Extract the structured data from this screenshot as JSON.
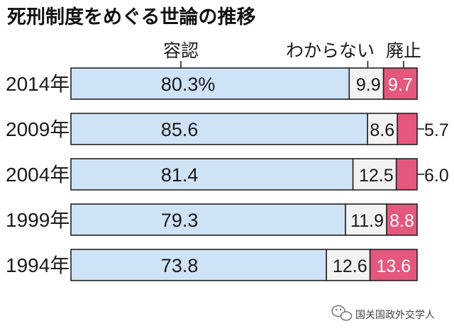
{
  "chart_data": {
    "type": "bar",
    "stacked": true,
    "orientation": "horizontal",
    "title": "死刑制度をめぐる世論の推移",
    "categories": [
      "2014年",
      "2009年",
      "2004年",
      "1999年",
      "1994年"
    ],
    "series": [
      {
        "name": "容認",
        "values": [
          80.3,
          85.6,
          81.4,
          79.3,
          73.8
        ],
        "labels": [
          "80.3%",
          "85.6",
          "81.4",
          "79.3",
          "73.8"
        ]
      },
      {
        "name": "わからない",
        "values": [
          9.9,
          8.6,
          12.5,
          11.9,
          12.6
        ],
        "labels": [
          "9.9",
          "8.6",
          "12.5",
          "11.9",
          "12.6"
        ]
      },
      {
        "name": "廃止",
        "values": [
          9.7,
          5.7,
          6.0,
          8.8,
          13.6
        ],
        "labels": [
          "9.7",
          "5.7",
          "6.0",
          "8.8",
          "13.6"
        ]
      }
    ],
    "xlim": [
      0,
      100
    ],
    "colors": {
      "容認": "#cfe3f6",
      "わからない": "#f2f2f2",
      "廃止": "#e5577d"
    },
    "legend_placement": "top"
  },
  "watermark": {
    "text": "国关国政外交学人"
  }
}
